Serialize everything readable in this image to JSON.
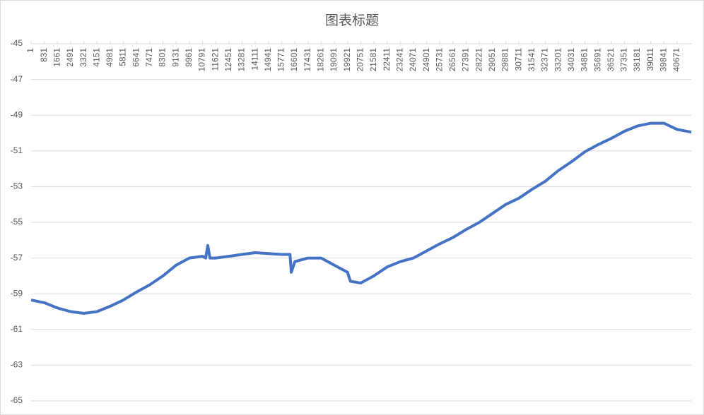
{
  "chart_data": {
    "type": "line",
    "title": "图表标题",
    "x": [
      1,
      831,
      1661,
      2491,
      3321,
      4151,
      4981,
      5811,
      6641,
      7471,
      8301,
      9131,
      9961,
      10791,
      10993,
      11127,
      11260,
      11621,
      12451,
      13281,
      14111,
      14941,
      15771,
      16300,
      16378,
      16601,
      17431,
      18261,
      19091,
      19921,
      20100,
      20751,
      21581,
      22411,
      23241,
      24071,
      24901,
      25731,
      26561,
      27391,
      28221,
      29051,
      29881,
      30711,
      31541,
      32371,
      33201,
      34031,
      34861,
      35691,
      36521,
      37351,
      38181,
      39011,
      39841,
      40671,
      41560
    ],
    "values": [
      -59.35,
      -59.5,
      -59.8,
      -60.0,
      -60.1,
      -60.0,
      -59.7,
      -59.35,
      -58.9,
      -58.5,
      -58.0,
      -57.4,
      -57.0,
      -56.9,
      -57.0,
      -56.3,
      -57.0,
      -57.0,
      -56.9,
      -56.8,
      -56.7,
      -56.75,
      -56.8,
      -56.8,
      -57.8,
      -57.2,
      -57.0,
      -57.0,
      -57.4,
      -57.8,
      -58.3,
      -58.4,
      -58.0,
      -57.5,
      -57.2,
      -57.0,
      -56.6,
      -56.2,
      -55.85,
      -55.4,
      -55.0,
      -54.5,
      -54.0,
      -53.65,
      -53.15,
      -52.7,
      -52.1,
      -51.6,
      -51.05,
      -50.65,
      -50.3,
      -49.9,
      -49.6,
      -49.45,
      -49.45,
      -49.8,
      -49.95
    ],
    "color": "#4472c4",
    "xlim": [
      1,
      41560
    ],
    "xticks": [
      1,
      831,
      1661,
      2491,
      3321,
      4151,
      4981,
      5811,
      6641,
      7471,
      8301,
      9131,
      9961,
      10791,
      11621,
      12451,
      13281,
      14111,
      14941,
      15771,
      16601,
      17431,
      18261,
      19091,
      19921,
      20751,
      21581,
      22411,
      23241,
      24071,
      24901,
      25731,
      26561,
      27391,
      28221,
      29051,
      29881,
      30711,
      31541,
      32371,
      33201,
      34031,
      34861,
      35691,
      36521,
      37351,
      38181,
      39011,
      39841,
      40671
    ],
    "ylim": [
      -65,
      -45
    ],
    "yticks": [
      -45,
      -47,
      -49,
      -51,
      -53,
      -55,
      -57,
      -59,
      -61,
      -63,
      -65
    ],
    "grid": true
  }
}
